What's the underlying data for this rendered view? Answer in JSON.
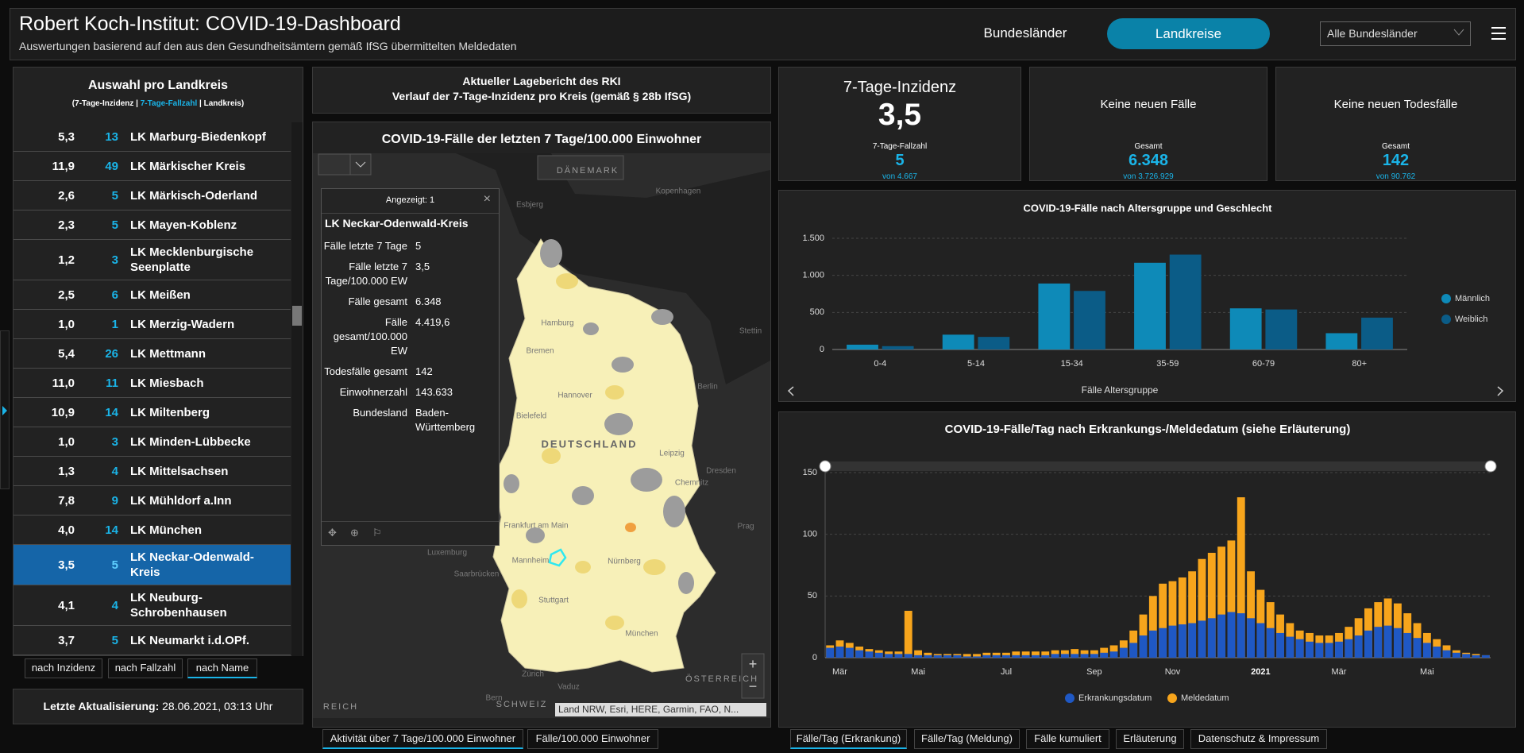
{
  "header": {
    "title": "Robert Koch-Institut: COVID-19-Dashboard",
    "subtitle": "Auswertungen basierend auf den aus den Gesundheitsämtern gemäß IfSG übermittelten Meldedaten",
    "nav": [
      "Bundesländer",
      "Landkreise"
    ],
    "dropdown": "Alle Bundesländer"
  },
  "list": {
    "title": "Auswahl pro Landkreis",
    "legend": [
      "(7-Tage-Inzidenz | ",
      "7-Tage-Fallzahl",
      " | Landkreis)"
    ],
    "rows": [
      [
        "5,3",
        "13",
        "LK Marburg-Biedenkopf"
      ],
      [
        "11,9",
        "49",
        "LK Märkischer Kreis"
      ],
      [
        "2,6",
        "5",
        "LK Märkisch-Oderland"
      ],
      [
        "2,3",
        "5",
        "LK Mayen-Koblenz"
      ],
      [
        "1,2",
        "3",
        "LK Mecklenburgische Seenplatte"
      ],
      [
        "2,5",
        "6",
        "LK Meißen"
      ],
      [
        "1,0",
        "1",
        "LK Merzig-Wadern"
      ],
      [
        "5,4",
        "26",
        "LK Mettmann"
      ],
      [
        "11,0",
        "11",
        "LK Miesbach"
      ],
      [
        "10,9",
        "14",
        "LK Miltenberg"
      ],
      [
        "1,0",
        "3",
        "LK Minden-Lübbecke"
      ],
      [
        "1,3",
        "4",
        "LK Mittelsachsen"
      ],
      [
        "7,8",
        "9",
        "LK Mühldorf a.Inn"
      ],
      [
        "4,0",
        "14",
        "LK München"
      ],
      [
        "3,5",
        "5",
        "LK Neckar-Odenwald-Kreis"
      ],
      [
        "4,1",
        "4",
        "LK Neuburg-Schrobenhausen"
      ],
      [
        "3,7",
        "5",
        "LK Neumarkt i.d.OPf."
      ]
    ],
    "selected_row": 14,
    "sort_buttons": [
      "nach Inzidenz",
      "nach Fallzahl",
      "nach Name"
    ]
  },
  "update": {
    "label": "Letzte Aktualisierung:",
    "value": "28.06.2021, 03:13 Uhr"
  },
  "report": {
    "lines": [
      "Aktueller Lagebericht des RKI",
      "Verlauf der 7-Tage-Inzidenz pro Kreis (gemäß § 28b IfSG)"
    ]
  },
  "map": {
    "title": "COVID-19-Fälle der letzten 7 Tage/100.000 Einwohner",
    "labels": [
      "DÄNEMARK",
      "Kopenhagen",
      "Esbjerg",
      "Hamburg",
      "Bremen",
      "Stettin",
      "Hannover",
      "Berlin",
      "Bielefeld",
      "DEUTSCHLAND",
      "Leipzig",
      "Dresden",
      "Chemnitz",
      "Frankfurt am Main",
      "Prag",
      "Luxemburg",
      "Mannheim",
      "Nürnberg",
      "Saarbrücken",
      "Stuttgart",
      "München",
      "Zürich",
      "Bern",
      "Vaduz",
      "SCHWEIZ",
      "ÖSTERREICH",
      "REICH"
    ],
    "popup": {
      "header": "Angezeigt: 1",
      "title": "LK Neckar-Odenwald-Kreis",
      "fields": [
        [
          "Fälle letzte 7 Tage",
          "5"
        ],
        [
          "Fälle letzte 7 Tage/100.000 EW",
          "3,5"
        ],
        [
          "Fälle gesamt",
          "6.348"
        ],
        [
          "Fälle gesamt/100.000 EW",
          "4.419,6"
        ],
        [
          "Todesfälle gesamt",
          "142"
        ],
        [
          "Einwohnerzahl",
          "143.633"
        ],
        [
          "Bundesland",
          "Baden-Württemberg"
        ]
      ]
    },
    "attribution": "Land NRW, Esri, HERE, Garmin, FAO, N...",
    "tabs": [
      "Aktivität über 7 Tage/100.000 Einwohner",
      "Fälle/100.000 Einwohner"
    ]
  },
  "kpis": [
    {
      "title": "7-Tage-Inzidenz",
      "value": "3,5",
      "label": "7-Tage-Fallzahl",
      "sub_value": "5",
      "sub_total": "von 4.667"
    },
    {
      "title": "Keine neuen Fälle",
      "label": "Gesamt",
      "sub_value": "6.348",
      "sub_total": "von 3.726.929"
    },
    {
      "title": "Keine neuen Todesfälle",
      "label": "Gesamt",
      "sub_value": "142",
      "sub_total": "von 90.762"
    }
  ],
  "chart_data": [
    {
      "type": "bar",
      "title": "COVID-19-Fälle nach Altersgruppe und Geschlecht",
      "categories": [
        "0-4",
        "5-14",
        "15-34",
        "35-59",
        "60-79",
        "80+"
      ],
      "series": [
        {
          "name": "Männlich",
          "color": "#0e8ab8",
          "values": [
            65,
            200,
            890,
            1170,
            555,
            220
          ]
        },
        {
          "name": "Weiblich",
          "color": "#0b5c87",
          "values": [
            45,
            170,
            790,
            1280,
            540,
            430
          ]
        }
      ],
      "xlabel": "Fälle Altersgruppe",
      "ylim": [
        0,
        1500
      ],
      "yticks": [
        0,
        500,
        {
          "value": 1000,
          "label": "1.000"
        },
        {
          "value": 1500,
          "label": "1.500"
        }
      ],
      "grid": true
    },
    {
      "type": "bar",
      "title": "COVID-19-Fälle/Tag nach Erkrankungs-/Meldedatum (siehe Erläuterung)",
      "categories": [
        null,
        "Mär",
        null,
        null,
        null,
        null,
        null,
        null,
        null,
        "Mai",
        null,
        null,
        null,
        null,
        null,
        null,
        null,
        null,
        "Jul",
        null,
        null,
        null,
        null,
        null,
        null,
        null,
        null,
        "Sep",
        null,
        null,
        null,
        null,
        null,
        null,
        null,
        "Nov",
        null,
        null,
        null,
        null,
        null,
        null,
        null,
        null,
        "2021",
        null,
        null,
        null,
        null,
        null,
        null,
        null,
        "Mär",
        null,
        null,
        null,
        null,
        null,
        null,
        null,
        null,
        "Mai",
        null,
        null,
        null,
        null,
        null,
        null
      ],
      "series": [
        {
          "name": "Erkrankungsdatum",
          "color": "#1f58c4",
          "values": [
            8,
            9,
            8,
            6,
            5,
            4,
            3,
            3,
            3,
            2,
            2,
            2,
            2,
            2,
            1,
            1,
            2,
            2,
            2,
            2,
            2,
            2,
            2,
            3,
            3,
            3,
            3,
            3,
            4,
            5,
            8,
            12,
            18,
            22,
            24,
            26,
            27,
            28,
            30,
            32,
            35,
            37,
            36,
            32,
            28,
            24,
            20,
            17,
            15,
            13,
            12,
            12,
            13,
            15,
            18,
            22,
            25,
            26,
            24,
            20,
            16,
            12,
            9,
            6,
            4,
            3,
            2,
            2
          ]
        },
        {
          "name": "Meldedatum",
          "color": "#f7a51c",
          "values": [
            10,
            14,
            12,
            9,
            7,
            6,
            5,
            5,
            38,
            6,
            4,
            3,
            3,
            3,
            3,
            3,
            4,
            4,
            4,
            5,
            5,
            5,
            5,
            6,
            6,
            7,
            6,
            6,
            8,
            10,
            14,
            22,
            35,
            50,
            60,
            62,
            65,
            70,
            80,
            85,
            90,
            95,
            130,
            70,
            55,
            45,
            35,
            28,
            22,
            20,
            18,
            18,
            20,
            25,
            32,
            40,
            45,
            48,
            44,
            36,
            28,
            20,
            15,
            10,
            6,
            4,
            3,
            2
          ]
        }
      ],
      "overlay": true,
      "ylim": [
        0,
        150
      ],
      "yticks": [
        0,
        50,
        100,
        150
      ],
      "grid": true
    }
  ],
  "tabs": [
    "Fälle/Tag (Erkrankung)",
    "Fälle/Tag (Meldung)",
    "Fälle kumuliert",
    "Erläuterung",
    "Datenschutz & Impressum"
  ]
}
